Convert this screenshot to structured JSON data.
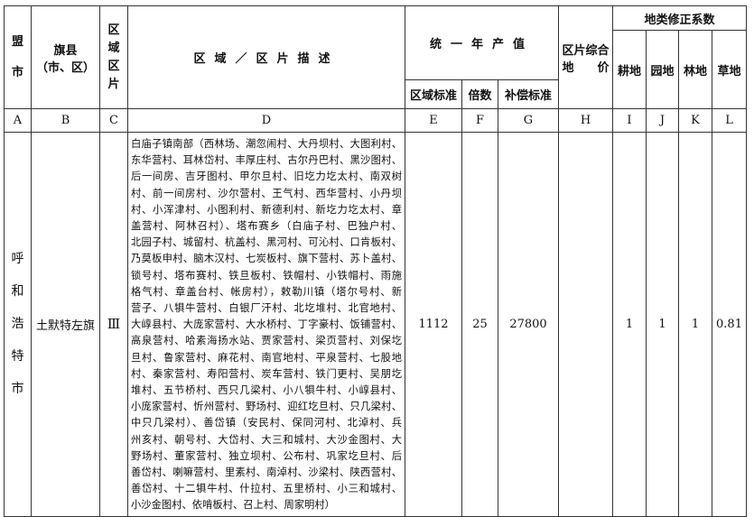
{
  "header": {
    "league_city": [
      "盟",
      "市"
    ],
    "banner_county": "旗县",
    "banner_county_sub": "（市、区）",
    "zone_parcel": [
      "区",
      "域",
      "区",
      "片"
    ],
    "description": "区域／区片描述",
    "unified_output": "统一年产值",
    "regional_standard": "区域标准",
    "multiple": "倍数",
    "compensation_standard": "补偿标准",
    "parcel_land_price": [
      "区片综合",
      "地　　价"
    ],
    "correction_group": "地类修正系数",
    "cultivated": "耕地",
    "garden": "园地",
    "forest": "林地",
    "grass": "草地"
  },
  "letters": [
    "A",
    "B",
    "C",
    "D",
    "E",
    "F",
    "G",
    "H",
    "I",
    "J",
    "K",
    "L"
  ],
  "row": {
    "city": [
      "呼",
      "和",
      "浩",
      "特",
      "市"
    ],
    "county": "土默特左旗",
    "zone": "Ⅲ",
    "description_lines": [
      "白庙子镇南部（西林场、潮忽闹村、大丹坝村、大图利村、",
      "东华营村、耳林岱村、丰厚庄村、古尔丹巴村、黑沙图村、",
      "后一间房、吉牙图村、甲尔旦村、旧圪力圪太村、南双树",
      "村、前一间房村、沙尔营村、王气村、西华营村、小丹坝",
      "村、小浑津村、小图利村、新德利村、新圪力圪太村、章",
      "盖营村、阿林召村）、塔布赛乡（白庙子村、巴独户村、",
      "北园子村、城留村、杭盖村、黑河村、可沁村、口肯板村、",
      "乃莫板申村、脑木汉村、七炭板村、旗下营村、苏卜盖村、",
      "锁号村、塔布赛村、铁旦板村、铁帽村、小铁帽村、雨施",
      "格气村、章盖台村、帐房村），敕勒川镇（塔尔号村、新",
      "营子、八犋牛营村、白银厂汗村、北圪堆村、北官地村、",
      "大崞县村、大庞家营村、大水桥村、丁字豪村、饭铺营村、",
      "高泉营村、哈素海扬水站、贾家营村、梁页营村、刘保圪",
      "旦村、鲁家营村、麻花村、南官地村、平泉营村、七股地",
      "村、秦家营村、寿阳营村、炭车营村、铁门更村、吴朋圪",
      "堆村、五节桥村、西只几梁村、小八犋牛村、小崞县村、",
      "小庞家营村、忻州营村、野场村、迎红圪旦村、只几梁村、",
      "中只几梁村）、善岱镇（安民村、保同河村、北淖村、兵",
      "州亥村、朝号村、大岱村、大三和城村、大沙金图村、大",
      "野场村、董家营村、独立坝村、公布村、巩家圪旦村、后",
      "善岱村、喇嘛营村、里素村、南淖村、沙梁村、陕西营村、",
      "善岱村、十二犋牛村、什拉村、五里桥村、小三和城村、",
      "小沙金图村、依啃板村、召上村、周家明村）"
    ],
    "regional_standard": "1112",
    "multiple": "25",
    "compensation_standard": "27800",
    "parcel_land_price": "",
    "cultivated": "1",
    "garden": "1",
    "forest": "1",
    "grass": "0.81"
  }
}
